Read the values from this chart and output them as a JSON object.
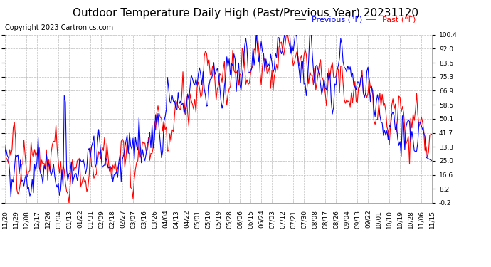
{
  "title": "Outdoor Temperature Daily High (Past/Previous Year) 20231120",
  "copyright": "Copyright 2023 Cartronics.com",
  "legend_previous": "Previous (°F)",
  "legend_past": "Past (°F)",
  "yticks": [
    100.4,
    92.0,
    83.6,
    75.3,
    66.9,
    58.5,
    50.1,
    41.7,
    33.3,
    25.0,
    16.6,
    8.2,
    -0.2
  ],
  "ylim": [
    -0.2,
    100.4
  ],
  "color_previous": "blue",
  "color_past": "red",
  "color_past_dark": "darkred",
  "background": "#ffffff",
  "grid_color": "#bbbbbb",
  "xtick_labels": [
    "11/20",
    "11/29",
    "12/08",
    "12/17",
    "12/26",
    "01/04",
    "01/13",
    "01/22",
    "01/31",
    "02/09",
    "02/18",
    "02/27",
    "03/07",
    "03/16",
    "03/26",
    "04/04",
    "04/13",
    "04/22",
    "05/01",
    "05/10",
    "05/19",
    "05/28",
    "06/06",
    "06/15",
    "06/24",
    "07/03",
    "07/12",
    "07/21",
    "07/30",
    "08/08",
    "08/17",
    "08/26",
    "09/04",
    "09/13",
    "09/22",
    "10/01",
    "10/10",
    "10/19",
    "10/28",
    "11/06",
    "11/15"
  ],
  "title_fontsize": 11,
  "copyright_fontsize": 7,
  "legend_fontsize": 8,
  "tick_fontsize": 6.5,
  "linewidth": 0.8,
  "n_days": 361
}
